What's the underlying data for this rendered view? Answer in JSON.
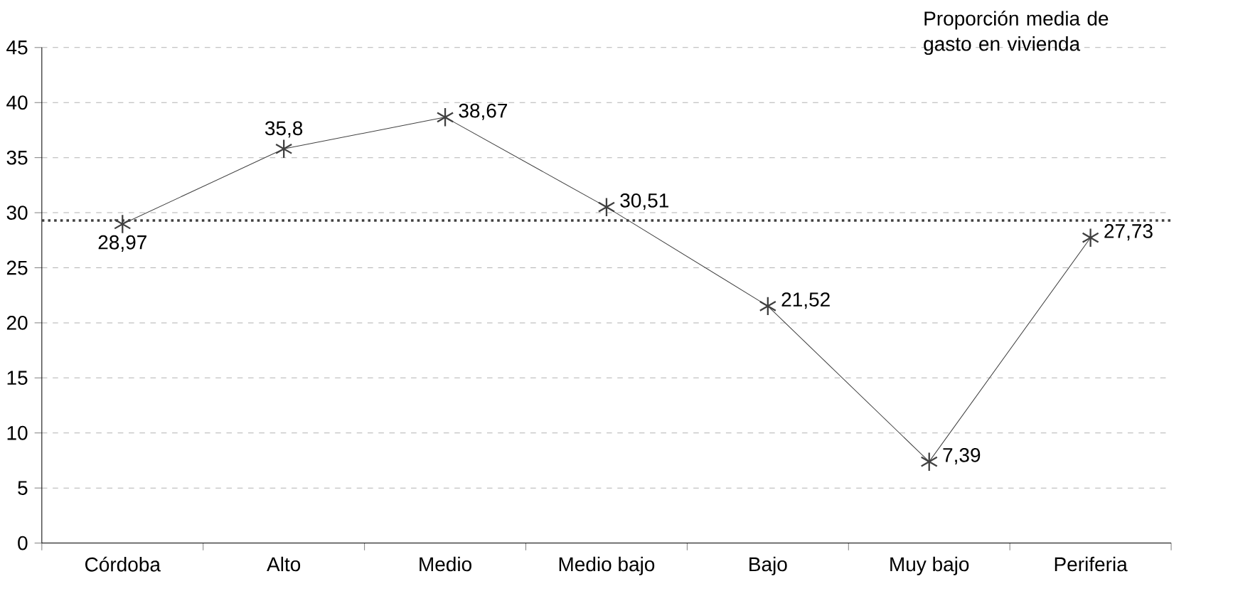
{
  "chart_data": {
    "type": "line",
    "title": "Proporción media de gasto en vivienda",
    "categories": [
      "Córdoba",
      "Alto",
      "Medio",
      "Medio bajo",
      "Bajo",
      "Muy bajo",
      "Periferia"
    ],
    "series": [
      {
        "color": "#404040",
        "values": [
          28.97,
          35.8,
          38.67,
          30.51,
          21.52,
          7.39,
          27.73
        ],
        "value_labels": [
          "28,97",
          "35,8",
          "38,67",
          "30,51",
          "21,52",
          "7,39",
          "27,73"
        ]
      }
    ],
    "ylim": [
      0,
      45
    ],
    "yticks": [
      0,
      5,
      10,
      15,
      20,
      25,
      30,
      35,
      40,
      45
    ],
    "ref_lines": [
      {
        "axis": "y",
        "value": 29.3,
        "color": "#404040",
        "line_style": "dotted"
      }
    ],
    "grid": "y",
    "marker": "cross",
    "line_style": "solid"
  }
}
